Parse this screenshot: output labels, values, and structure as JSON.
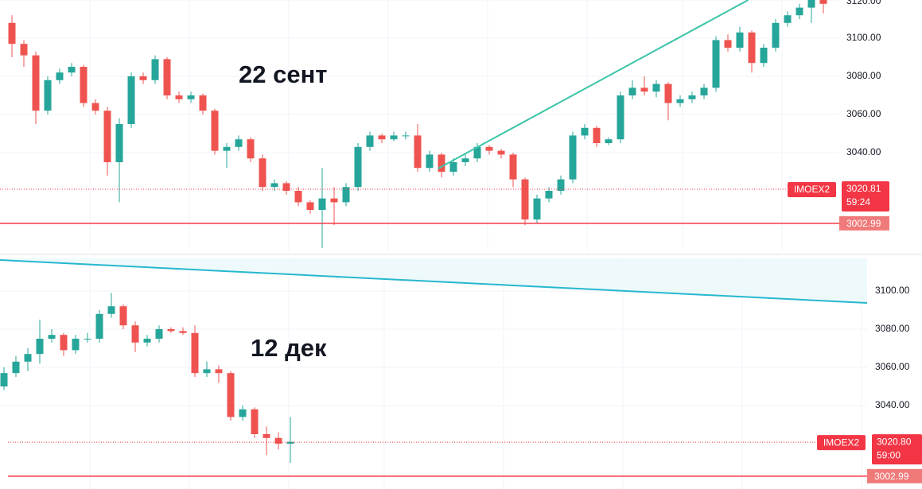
{
  "chart_data": [
    {
      "type": "candlestick",
      "annotation": "22 сент",
      "ylim": [
        2988.75,
        3120
      ],
      "yticks": [
        {
          "value": 3120,
          "label": "3120.00"
        },
        {
          "value": 3100,
          "label": "3100.00"
        },
        {
          "value": 3080,
          "label": "3080.00"
        },
        {
          "value": 3060,
          "label": "3060.00"
        },
        {
          "value": 3040,
          "label": "3040.00"
        }
      ],
      "grid": true,
      "up_color": "#26a69a",
      "down_color": "#ef5350",
      "candles": [
        [
          3108,
          3112,
          3090,
          3097
        ],
        [
          3097,
          3099,
          3085,
          3091
        ],
        [
          3091,
          3093,
          3055,
          3062
        ],
        [
          3062,
          3080,
          3060,
          3078
        ],
        [
          3078,
          3084,
          3076,
          3082
        ],
        [
          3082,
          3087,
          3080,
          3085
        ],
        [
          3085,
          3086,
          3064,
          3066
        ],
        [
          3066,
          3068,
          3060,
          3062
        ],
        [
          3062,
          3064,
          3028,
          3035
        ],
        [
          3035,
          3058,
          3014,
          3055
        ],
        [
          3055,
          3082,
          3053,
          3080
        ],
        [
          3080,
          3082,
          3076,
          3078
        ],
        [
          3078,
          3091,
          3076,
          3089
        ],
        [
          3089,
          3090,
          3068,
          3070
        ],
        [
          3070,
          3072,
          3066,
          3068
        ],
        [
          3068,
          3072,
          3066,
          3070
        ],
        [
          3070,
          3071,
          3060,
          3062
        ],
        [
          3062,
          3063,
          3039,
          3041
        ],
        [
          3041,
          3045,
          3032,
          3043
        ],
        [
          3043,
          3049,
          3041,
          3047
        ],
        [
          3047,
          3048,
          3035,
          3037
        ],
        [
          3037,
          3039,
          3020,
          3022
        ],
        [
          3022,
          3026,
          3020,
          3024
        ],
        [
          3024,
          3025,
          3018,
          3020
        ],
        [
          3020,
          3022,
          3012,
          3014
        ],
        [
          3014,
          3015,
          3008,
          3010
        ],
        [
          3010,
          3032,
          2990,
          3016
        ],
        [
          3016,
          3022,
          3002,
          3014
        ],
        [
          3014,
          3024,
          3012,
          3022
        ],
        [
          3022,
          3045,
          3020,
          3043
        ],
        [
          3043,
          3051,
          3041,
          3049
        ],
        [
          3049,
          3050,
          3045,
          3047
        ],
        [
          3047,
          3051,
          3046,
          3049
        ],
        [
          3049,
          3051,
          3047,
          3049
        ],
        [
          3049,
          3055,
          3030,
          3032
        ],
        [
          3032,
          3041,
          3030,
          3039
        ],
        [
          3039,
          3040,
          3027,
          3030
        ],
        [
          3030,
          3037,
          3028,
          3035
        ],
        [
          3035,
          3039,
          3033,
          3037
        ],
        [
          3037,
          3045,
          3035,
          3043
        ],
        [
          3043,
          3044,
          3039,
          3041
        ],
        [
          3041,
          3042,
          3037,
          3039
        ],
        [
          3039,
          3040,
          3022,
          3026
        ],
        [
          3026,
          3027,
          3002,
          3005
        ],
        [
          3005,
          3018,
          3003,
          3016
        ],
        [
          3016,
          3022,
          3014,
          3020
        ],
        [
          3020,
          3028,
          3018,
          3026
        ],
        [
          3026,
          3051,
          3024,
          3049
        ],
        [
          3049,
          3055,
          3047,
          3053
        ],
        [
          3053,
          3054,
          3043,
          3045
        ],
        [
          3045,
          3048,
          3044,
          3047
        ],
        [
          3047,
          3072,
          3045,
          3070
        ],
        [
          3070,
          3078,
          3068,
          3074
        ],
        [
          3074,
          3080,
          3070,
          3072
        ],
        [
          3072,
          3078,
          3069,
          3076
        ],
        [
          3076,
          3077,
          3057,
          3066
        ],
        [
          3066,
          3070,
          3064,
          3068
        ],
        [
          3068,
          3072,
          3066,
          3070
        ],
        [
          3070,
          3076,
          3068,
          3074
        ],
        [
          3074,
          3101,
          3072,
          3099
        ],
        [
          3099,
          3102,
          3093,
          3095
        ],
        [
          3095,
          3106,
          3093,
          3103
        ],
        [
          3103,
          3104,
          3082,
          3087
        ],
        [
          3087,
          3097,
          3085,
          3095
        ],
        [
          3095,
          3110,
          3093,
          3108
        ],
        [
          3108,
          3114,
          3106,
          3112
        ],
        [
          3112,
          3118,
          3110,
          3116
        ],
        [
          3116,
          3124,
          3108,
          3120
        ],
        [
          3120,
          3122,
          3113,
          3118
        ]
      ],
      "trendline": {
        "color": "#3cc5a8",
        "x": [
          35.7,
          61.7
        ],
        "y": [
          3031.67,
          3120
        ]
      },
      "price_line": {
        "name": "IMOEX2",
        "value": 3020.81,
        "value_label": "3020.81",
        "countdown": "59:24",
        "color": "#f23645"
      },
      "level": {
        "value": 3002.99,
        "color": "#f23645"
      }
    },
    {
      "type": "candlestick",
      "annotation": "12 дек",
      "ylim": [
        2996.25,
        3117.08
      ],
      "yticks": [
        {
          "value": 3100,
          "label": "3100.00"
        },
        {
          "value": 3080,
          "label": "3080.00"
        },
        {
          "value": 3060,
          "label": "3060.00"
        },
        {
          "value": 3040,
          "label": "3040.00"
        }
      ],
      "grid": true,
      "up_color": "#26a69a",
      "down_color": "#ef5350",
      "candles": [
        [
          3050,
          3060,
          3048,
          3057
        ],
        [
          3057,
          3066,
          3055,
          3063
        ],
        [
          3063,
          3070,
          3058,
          3067
        ],
        [
          3067,
          3085,
          3062,
          3075
        ],
        [
          3075,
          3080,
          3073,
          3077
        ],
        [
          3077,
          3078,
          3066,
          3069
        ],
        [
          3069,
          3077,
          3067,
          3075
        ],
        [
          3075,
          3078,
          3073,
          3075
        ],
        [
          3075,
          3090,
          3073,
          3088
        ],
        [
          3088,
          3099,
          3086,
          3092
        ],
        [
          3092,
          3093,
          3080,
          3082
        ],
        [
          3082,
          3084,
          3068,
          3073
        ],
        [
          3073,
          3077,
          3071,
          3075
        ],
        [
          3075,
          3082,
          3073,
          3080
        ],
        [
          3080,
          3081,
          3078,
          3079
        ],
        [
          3079,
          3081,
          3077,
          3078
        ],
        [
          3078,
          3082,
          3055,
          3057
        ],
        [
          3057,
          3063,
          3055,
          3059
        ],
        [
          3059,
          3061,
          3052,
          3057
        ],
        [
          3057,
          3058,
          3032,
          3034
        ],
        [
          3034,
          3040,
          3032,
          3038
        ],
        [
          3038,
          3039,
          3023,
          3025
        ],
        [
          3025,
          3029,
          3014,
          3023
        ],
        [
          3023,
          3026,
          3017,
          3020
        ],
        [
          3020,
          3034,
          3010,
          3021
        ]
      ],
      "trendline": {
        "color": "#26b7d0",
        "x": [
          -0.33,
          72.33
        ],
        "y": [
          3116.25,
          3093.75
        ]
      },
      "price_line": {
        "name": "IMOEX2",
        "value": 3020.8,
        "value_label": "3020.80",
        "countdown": "59:00",
        "color": "#f23645"
      },
      "level": {
        "value": 3002.99,
        "color": "#f23645"
      }
    }
  ]
}
